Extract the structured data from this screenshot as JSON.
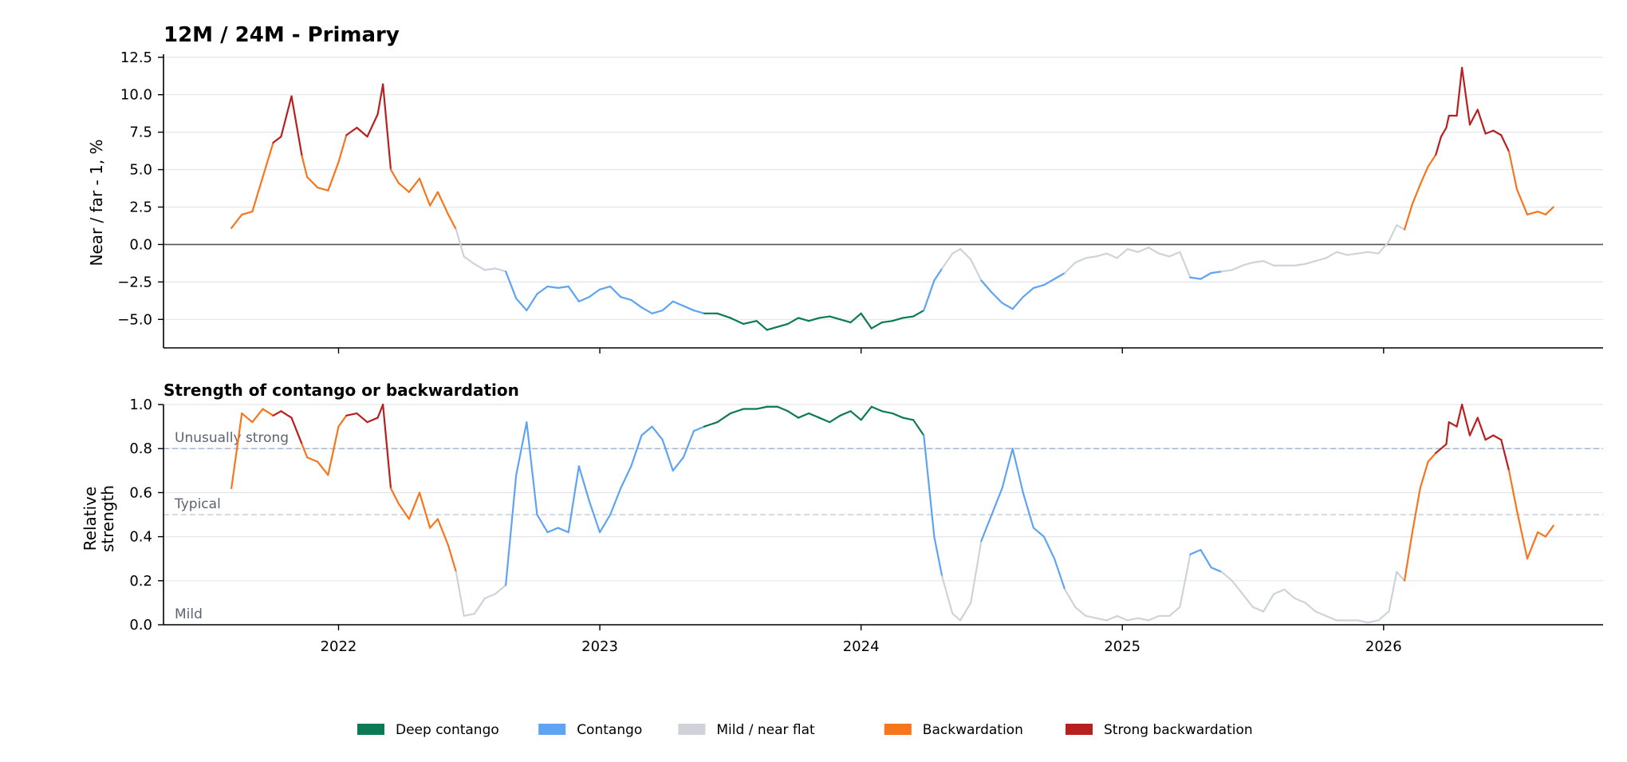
{
  "colors": {
    "deep_contango": "#0b7a55",
    "contango": "#5ea4f2",
    "mild": "#cfd3d9",
    "backwardation": "#f7761c",
    "strong_backwardation": "#b81f1f",
    "grid": "#e3e6ea",
    "zero_line": "#555555",
    "ref_unusual": "#9fb0cc",
    "ref_typical": "#c8d0dc"
  },
  "chart_data": [
    {
      "type": "line",
      "title": "12M / 24M - Primary",
      "xlabel": "",
      "ylabel": "Near / far - 1, %",
      "xlim": [
        2021.33,
        2026.84
      ],
      "ylim": [
        -6.9,
        12.7
      ],
      "y_ticks": [
        -5.0,
        -2.5,
        0.0,
        2.5,
        5.0,
        7.5,
        10.0,
        12.5
      ],
      "y_tick_labels": [
        "−5.0",
        "−2.5",
        "0.0",
        "2.5",
        "5.0",
        "7.5",
        "10.0",
        "12.5"
      ],
      "x_ticks": [
        2022,
        2023,
        2024,
        2025,
        2026
      ],
      "x_tick_labels": [
        "2022",
        "2023",
        "2024",
        "2025",
        "2026"
      ],
      "x_tick_labels_shown": false,
      "grid": "horizontal",
      "zero_line": 0,
      "regimes": [
        "Deep contango",
        "Contango",
        "Mild / near flat",
        "Backwardation",
        "Strong backwardation"
      ],
      "series_points": [
        [
          2021.59,
          1.1
        ],
        [
          2021.63,
          2.0
        ],
        [
          2021.67,
          2.2
        ],
        [
          2021.71,
          4.5
        ],
        [
          2021.75,
          6.8
        ],
        [
          2021.78,
          7.2
        ],
        [
          2021.82,
          9.9
        ],
        [
          2021.86,
          5.9
        ],
        [
          2021.88,
          4.5
        ],
        [
          2021.92,
          3.8
        ],
        [
          2021.96,
          3.6
        ],
        [
          2022.0,
          5.5
        ],
        [
          2022.03,
          7.3
        ],
        [
          2022.07,
          7.8
        ],
        [
          2022.11,
          7.2
        ],
        [
          2022.15,
          8.7
        ],
        [
          2022.17,
          10.7
        ],
        [
          2022.2,
          5.0
        ],
        [
          2022.23,
          4.1
        ],
        [
          2022.27,
          3.5
        ],
        [
          2022.31,
          4.4
        ],
        [
          2022.35,
          2.6
        ],
        [
          2022.38,
          3.5
        ],
        [
          2022.42,
          2.0
        ],
        [
          2022.45,
          1.0
        ],
        [
          2022.48,
          -0.8
        ],
        [
          2022.52,
          -1.3
        ],
        [
          2022.56,
          -1.7
        ],
        [
          2022.6,
          -1.6
        ],
        [
          2022.64,
          -1.8
        ],
        [
          2022.68,
          -3.6
        ],
        [
          2022.72,
          -4.4
        ],
        [
          2022.76,
          -3.3
        ],
        [
          2022.8,
          -2.8
        ],
        [
          2022.84,
          -2.9
        ],
        [
          2022.88,
          -2.8
        ],
        [
          2022.92,
          -3.8
        ],
        [
          2022.96,
          -3.5
        ],
        [
          2023.0,
          -3.0
        ],
        [
          2023.04,
          -2.8
        ],
        [
          2023.08,
          -3.5
        ],
        [
          2023.12,
          -3.7
        ],
        [
          2023.16,
          -4.2
        ],
        [
          2023.2,
          -4.6
        ],
        [
          2023.24,
          -4.4
        ],
        [
          2023.28,
          -3.8
        ],
        [
          2023.32,
          -4.1
        ],
        [
          2023.36,
          -4.4
        ],
        [
          2023.4,
          -4.6
        ],
        [
          2023.45,
          -4.6
        ],
        [
          2023.5,
          -4.9
        ],
        [
          2023.55,
          -5.3
        ],
        [
          2023.6,
          -5.1
        ],
        [
          2023.64,
          -5.7
        ],
        [
          2023.68,
          -5.5
        ],
        [
          2023.72,
          -5.3
        ],
        [
          2023.76,
          -4.9
        ],
        [
          2023.8,
          -5.1
        ],
        [
          2023.84,
          -4.9
        ],
        [
          2023.88,
          -4.8
        ],
        [
          2023.92,
          -5.0
        ],
        [
          2023.96,
          -5.2
        ],
        [
          2024.0,
          -4.6
        ],
        [
          2024.04,
          -5.6
        ],
        [
          2024.08,
          -5.2
        ],
        [
          2024.12,
          -5.1
        ],
        [
          2024.16,
          -4.9
        ],
        [
          2024.2,
          -4.8
        ],
        [
          2024.24,
          -4.4
        ],
        [
          2024.28,
          -2.4
        ],
        [
          2024.31,
          -1.6
        ],
        [
          2024.35,
          -0.6
        ],
        [
          2024.38,
          -0.3
        ],
        [
          2024.42,
          -1.0
        ],
        [
          2024.46,
          -2.4
        ],
        [
          2024.5,
          -3.2
        ],
        [
          2024.54,
          -3.9
        ],
        [
          2024.58,
          -4.3
        ],
        [
          2024.62,
          -3.5
        ],
        [
          2024.66,
          -2.9
        ],
        [
          2024.7,
          -2.7
        ],
        [
          2024.74,
          -2.3
        ],
        [
          2024.78,
          -1.9
        ],
        [
          2024.82,
          -1.2
        ],
        [
          2024.86,
          -0.9
        ],
        [
          2024.9,
          -0.8
        ],
        [
          2024.94,
          -0.6
        ],
        [
          2024.98,
          -0.9
        ],
        [
          2025.02,
          -0.3
        ],
        [
          2025.06,
          -0.5
        ],
        [
          2025.1,
          -0.2
        ],
        [
          2025.14,
          -0.6
        ],
        [
          2025.18,
          -0.8
        ],
        [
          2025.22,
          -0.5
        ],
        [
          2025.26,
          -2.2
        ],
        [
          2025.3,
          -2.3
        ],
        [
          2025.34,
          -1.9
        ],
        [
          2025.38,
          -1.8
        ],
        [
          2025.42,
          -1.7
        ],
        [
          2025.46,
          -1.4
        ],
        [
          2025.5,
          -1.2
        ],
        [
          2025.54,
          -1.1
        ],
        [
          2025.58,
          -1.4
        ],
        [
          2025.62,
          -1.4
        ],
        [
          2025.66,
          -1.4
        ],
        [
          2025.7,
          -1.3
        ],
        [
          2025.74,
          -1.1
        ],
        [
          2025.78,
          -0.9
        ],
        [
          2025.82,
          -0.5
        ],
        [
          2025.86,
          -0.7
        ],
        [
          2025.9,
          -0.6
        ],
        [
          2025.94,
          -0.5
        ],
        [
          2025.98,
          -0.6
        ],
        [
          2026.02,
          0.2
        ],
        [
          2026.05,
          1.3
        ],
        [
          2026.08,
          1.0
        ],
        [
          2026.11,
          2.7
        ],
        [
          2026.14,
          4.0
        ],
        [
          2026.17,
          5.2
        ],
        [
          2026.2,
          6.0
        ],
        [
          2026.22,
          7.2
        ],
        [
          2026.24,
          7.8
        ],
        [
          2026.25,
          8.6
        ],
        [
          2026.28,
          8.6
        ],
        [
          2026.3,
          11.8
        ],
        [
          2026.33,
          8.0
        ],
        [
          2026.36,
          9.0
        ],
        [
          2026.39,
          7.4
        ],
        [
          2026.42,
          7.6
        ],
        [
          2026.45,
          7.3
        ],
        [
          2026.48,
          6.2
        ],
        [
          2026.51,
          3.7
        ],
        [
          2026.55,
          2.0
        ],
        [
          2026.59,
          2.2
        ],
        [
          2026.62,
          2.0
        ],
        [
          2026.65,
          2.5
        ]
      ]
    },
    {
      "type": "line",
      "title": "Strength of contango or backwardation",
      "xlabel": "",
      "ylabel": "Relative\nstrength",
      "ylim": [
        0.0,
        1.0
      ],
      "y_ticks": [
        0.0,
        0.2,
        0.4,
        0.6,
        0.8,
        1.0
      ],
      "y_tick_labels": [
        "0.0",
        "0.2",
        "0.4",
        "0.6",
        "0.8",
        "1.0"
      ],
      "x_ticks": [
        2022,
        2023,
        2024,
        2025,
        2026
      ],
      "x_tick_labels": [
        "2022",
        "2023",
        "2024",
        "2025",
        "2026"
      ],
      "grid": "horizontal",
      "reference_lines": [
        {
          "y": 0.8,
          "label": "Unusually strong",
          "style": "dashed"
        },
        {
          "y": 0.5,
          "label": "Typical",
          "style": "dashed"
        },
        {
          "y": 0.0,
          "label": "Mild",
          "style": "none"
        }
      ],
      "series_points": [
        [
          2021.59,
          0.62
        ],
        [
          2021.63,
          0.96
        ],
        [
          2021.67,
          0.92
        ],
        [
          2021.71,
          0.98
        ],
        [
          2021.75,
          0.95
        ],
        [
          2021.78,
          0.97
        ],
        [
          2021.82,
          0.94
        ],
        [
          2021.86,
          0.82
        ],
        [
          2021.88,
          0.76
        ],
        [
          2021.92,
          0.74
        ],
        [
          2021.96,
          0.68
        ],
        [
          2022.0,
          0.9
        ],
        [
          2022.03,
          0.95
        ],
        [
          2022.07,
          0.96
        ],
        [
          2022.11,
          0.92
        ],
        [
          2022.15,
          0.94
        ],
        [
          2022.17,
          1.0
        ],
        [
          2022.2,
          0.62
        ],
        [
          2022.23,
          0.55
        ],
        [
          2022.27,
          0.48
        ],
        [
          2022.31,
          0.6
        ],
        [
          2022.35,
          0.44
        ],
        [
          2022.38,
          0.48
        ],
        [
          2022.42,
          0.36
        ],
        [
          2022.45,
          0.24
        ],
        [
          2022.48,
          0.04
        ],
        [
          2022.52,
          0.05
        ],
        [
          2022.56,
          0.12
        ],
        [
          2022.6,
          0.14
        ],
        [
          2022.64,
          0.18
        ],
        [
          2022.68,
          0.68
        ],
        [
          2022.72,
          0.92
        ],
        [
          2022.76,
          0.5
        ],
        [
          2022.8,
          0.42
        ],
        [
          2022.84,
          0.44
        ],
        [
          2022.88,
          0.42
        ],
        [
          2022.92,
          0.72
        ],
        [
          2022.96,
          0.56
        ],
        [
          2023.0,
          0.42
        ],
        [
          2023.04,
          0.5
        ],
        [
          2023.08,
          0.62
        ],
        [
          2023.12,
          0.72
        ],
        [
          2023.16,
          0.86
        ],
        [
          2023.2,
          0.9
        ],
        [
          2023.24,
          0.84
        ],
        [
          2023.28,
          0.7
        ],
        [
          2023.32,
          0.76
        ],
        [
          2023.36,
          0.88
        ],
        [
          2023.4,
          0.9
        ],
        [
          2023.45,
          0.92
        ],
        [
          2023.5,
          0.96
        ],
        [
          2023.55,
          0.98
        ],
        [
          2023.6,
          0.98
        ],
        [
          2023.64,
          0.99
        ],
        [
          2023.68,
          0.99
        ],
        [
          2023.72,
          0.97
        ],
        [
          2023.76,
          0.94
        ],
        [
          2023.8,
          0.96
        ],
        [
          2023.84,
          0.94
        ],
        [
          2023.88,
          0.92
        ],
        [
          2023.92,
          0.95
        ],
        [
          2023.96,
          0.97
        ],
        [
          2024.0,
          0.93
        ],
        [
          2024.04,
          0.99
        ],
        [
          2024.08,
          0.97
        ],
        [
          2024.12,
          0.96
        ],
        [
          2024.16,
          0.94
        ],
        [
          2024.2,
          0.93
        ],
        [
          2024.24,
          0.86
        ],
        [
          2024.28,
          0.4
        ],
        [
          2024.31,
          0.22
        ],
        [
          2024.35,
          0.05
        ],
        [
          2024.38,
          0.02
        ],
        [
          2024.42,
          0.1
        ],
        [
          2024.46,
          0.38
        ],
        [
          2024.5,
          0.5
        ],
        [
          2024.54,
          0.62
        ],
        [
          2024.58,
          0.8
        ],
        [
          2024.62,
          0.6
        ],
        [
          2024.66,
          0.44
        ],
        [
          2024.7,
          0.4
        ],
        [
          2024.74,
          0.3
        ],
        [
          2024.78,
          0.16
        ],
        [
          2024.82,
          0.08
        ],
        [
          2024.86,
          0.04
        ],
        [
          2024.9,
          0.03
        ],
        [
          2024.94,
          0.02
        ],
        [
          2024.98,
          0.04
        ],
        [
          2025.02,
          0.02
        ],
        [
          2025.06,
          0.03
        ],
        [
          2025.1,
          0.02
        ],
        [
          2025.14,
          0.04
        ],
        [
          2025.18,
          0.04
        ],
        [
          2025.22,
          0.08
        ],
        [
          2025.26,
          0.32
        ],
        [
          2025.3,
          0.34
        ],
        [
          2025.34,
          0.26
        ],
        [
          2025.38,
          0.24
        ],
        [
          2025.42,
          0.2
        ],
        [
          2025.46,
          0.14
        ],
        [
          2025.5,
          0.08
        ],
        [
          2025.54,
          0.06
        ],
        [
          2025.58,
          0.14
        ],
        [
          2025.62,
          0.16
        ],
        [
          2025.66,
          0.12
        ],
        [
          2025.7,
          0.1
        ],
        [
          2025.74,
          0.06
        ],
        [
          2025.78,
          0.04
        ],
        [
          2025.82,
          0.02
        ],
        [
          2025.86,
          0.02
        ],
        [
          2025.9,
          0.02
        ],
        [
          2025.94,
          0.01
        ],
        [
          2025.98,
          0.02
        ],
        [
          2026.02,
          0.06
        ],
        [
          2026.05,
          0.24
        ],
        [
          2026.08,
          0.2
        ],
        [
          2026.11,
          0.42
        ],
        [
          2026.14,
          0.62
        ],
        [
          2026.17,
          0.74
        ],
        [
          2026.2,
          0.78
        ],
        [
          2026.22,
          0.8
        ],
        [
          2026.24,
          0.82
        ],
        [
          2026.25,
          0.92
        ],
        [
          2026.28,
          0.9
        ],
        [
          2026.3,
          1.0
        ],
        [
          2026.33,
          0.86
        ],
        [
          2026.36,
          0.94
        ],
        [
          2026.39,
          0.84
        ],
        [
          2026.42,
          0.86
        ],
        [
          2026.45,
          0.84
        ],
        [
          2026.48,
          0.7
        ],
        [
          2026.51,
          0.52
        ],
        [
          2026.55,
          0.3
        ],
        [
          2026.59,
          0.42
        ],
        [
          2026.62,
          0.4
        ],
        [
          2026.65,
          0.45
        ]
      ]
    }
  ],
  "legend": {
    "placement": "bottom-center",
    "items": [
      {
        "label": "Deep contango",
        "color": "#0b7a55"
      },
      {
        "label": "Contango",
        "color": "#5ea4f2"
      },
      {
        "label": "Mild / near flat",
        "color": "#cfd3d9"
      },
      {
        "label": "Backwardation",
        "color": "#f7761c"
      },
      {
        "label": "Strong backwardation",
        "color": "#b81f1f"
      }
    ]
  }
}
